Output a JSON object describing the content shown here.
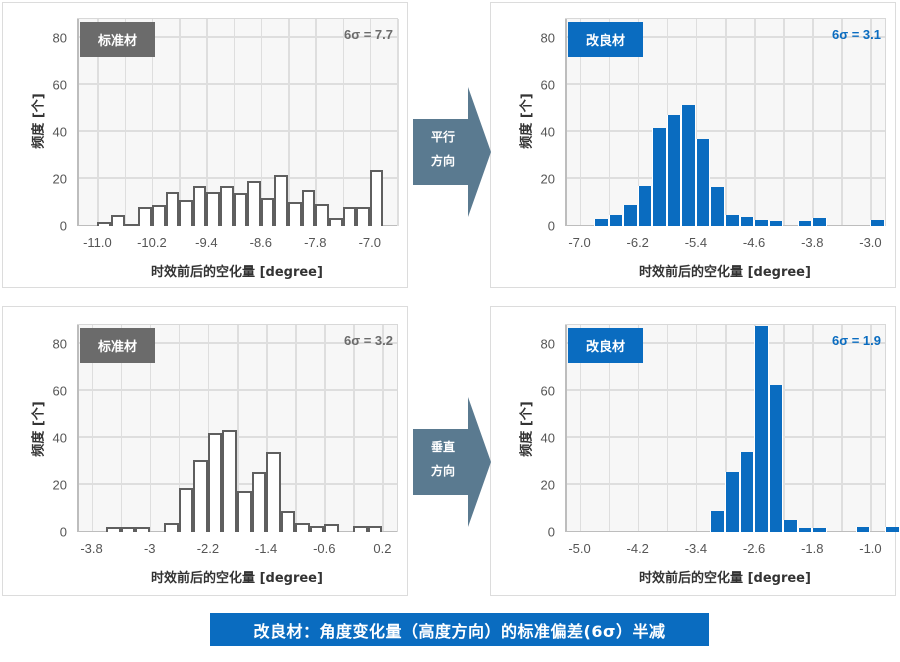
{
  "y_axis_label": "频度 [个]",
  "x_axis_label": "时效前后的空化量 [degree]",
  "arrows": [
    {
      "line1": "平行",
      "line2": "方向"
    },
    {
      "line1": "垂直",
      "line2": "方向"
    }
  ],
  "banner": "改良材：角度变化量（高度方向）的标准偏差(6σ）半减",
  "colors": {
    "standard_tag": "#6b6b6b",
    "improved": "#0a6cc0",
    "arrow": "#5a7a90"
  },
  "chart_data": [
    {
      "type": "bar",
      "id": "parallel-standard",
      "tag": "标准材",
      "annotation": "6σ = 7.7",
      "style": "std",
      "xlabel": "时效前后的空化量 [degree]",
      "ylabel": "频度 [个]",
      "ylim": [
        0,
        88
      ],
      "yticks": [
        "0",
        "20",
        "40",
        "60",
        "80"
      ],
      "xlim": [
        -11.3,
        -6.6
      ],
      "xticks": [
        {
          "v": -11.0,
          "label": "-11.0"
        },
        {
          "v": -10.2,
          "label": "-10.2"
        },
        {
          "v": -9.4,
          "label": "-9.4"
        },
        {
          "v": -8.6,
          "label": "-8.6"
        },
        {
          "v": -7.8,
          "label": "-7.8"
        },
        {
          "v": -7.0,
          "label": "-7.0"
        }
      ],
      "bin_start": -11.0,
      "bin_width": 0.2,
      "values": [
        1.5,
        4.5,
        1,
        8,
        9,
        14.5,
        11,
        17,
        14.5,
        17,
        14,
        19,
        12,
        21.5,
        10,
        15.5,
        9.5,
        3.5,
        8,
        8,
        24
      ],
      "grid": true
    },
    {
      "type": "bar",
      "id": "parallel-improved",
      "tag": "改良材",
      "annotation": "6σ = 3.1",
      "style": "imp",
      "xlabel": "时效前后的空化量 [degree]",
      "ylabel": "频度 [个]",
      "ylim": [
        0,
        88
      ],
      "yticks": [
        "0",
        "20",
        "40",
        "60",
        "80"
      ],
      "xlim": [
        -7.2,
        -2.8
      ],
      "xticks": [
        {
          "v": -7.0,
          "label": "-7.0"
        },
        {
          "v": -6.2,
          "label": "-6.2"
        },
        {
          "v": -5.4,
          "label": "-5.4"
        },
        {
          "v": -4.6,
          "label": "-4.6"
        },
        {
          "v": -3.8,
          "label": "-3.8"
        },
        {
          "v": -3.0,
          "label": "-3.0"
        }
      ],
      "bin_start": -6.8,
      "bin_width": 0.2,
      "values": [
        3,
        4.5,
        9,
        17,
        41.5,
        47,
        51.5,
        37,
        16.5,
        4.5,
        4,
        2.5,
        2,
        0,
        2,
        3.5,
        0,
        0,
        0,
        2.5
      ],
      "grid": true
    },
    {
      "type": "bar",
      "id": "vertical-standard",
      "tag": "标准材",
      "annotation": "6σ = 3.2",
      "style": "std",
      "xlabel": "时效前后的空化量 [degree]",
      "ylabel": "频度 [个]",
      "ylim": [
        0,
        88
      ],
      "yticks": [
        "0",
        "20",
        "40",
        "60",
        "80"
      ],
      "xlim": [
        -4.0,
        0.4
      ],
      "xticks": [
        {
          "v": -3.8,
          "label": "-3.8"
        },
        {
          "v": -3.0,
          "label": "-3"
        },
        {
          "v": -2.2,
          "label": "-2.2"
        },
        {
          "v": -1.4,
          "label": "-1.4"
        },
        {
          "v": -0.6,
          "label": "-0.6"
        },
        {
          "v": 0.2,
          "label": "0.2"
        }
      ],
      "bin_start": -3.6,
      "bin_width": 0.2,
      "values": [
        2,
        2,
        2,
        0,
        4,
        18.5,
        30.5,
        42,
        43.5,
        17.5,
        25.5,
        34,
        9,
        4,
        2.5,
        3.5,
        0,
        2.5,
        2.5
      ],
      "grid": true
    },
    {
      "type": "bar",
      "id": "vertical-improved",
      "tag": "改良材",
      "annotation": "6σ = 1.9",
      "style": "imp",
      "xlabel": "时效前后的空化量 [degree]",
      "ylabel": "频度 [个]",
      "ylim": [
        0,
        88
      ],
      "yticks": [
        "0",
        "20",
        "40",
        "60",
        "80"
      ],
      "xlim": [
        -5.2,
        -0.8
      ],
      "xticks": [
        {
          "v": -5.0,
          "label": "-5.0"
        },
        {
          "v": -4.2,
          "label": "-4.2"
        },
        {
          "v": -3.4,
          "label": "-3.4"
        },
        {
          "v": -2.6,
          "label": "-2.6"
        },
        {
          "v": -1.8,
          "label": "-1.8"
        },
        {
          "v": -1.0,
          "label": "-1.0"
        }
      ],
      "bin_start": -3.2,
      "bin_width": 0.2,
      "values": [
        9,
        25.5,
        34,
        87.5,
        62.5,
        5,
        1.5,
        1.5,
        0,
        0,
        2,
        0,
        2
      ],
      "grid": true
    }
  ]
}
